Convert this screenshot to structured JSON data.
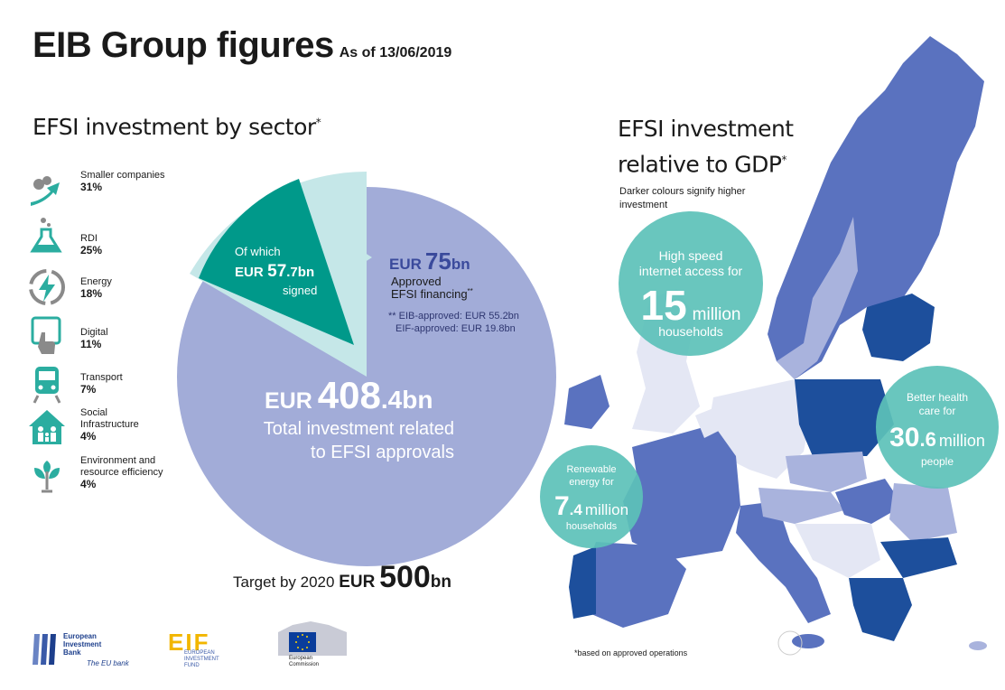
{
  "header": {
    "title": "EIB Group figures",
    "as_of": "As of 13/06/2019"
  },
  "sector_section": {
    "heading": "EFSI investment by sector",
    "asterisk": "*",
    "sectors": [
      {
        "label": "Smaller companies",
        "pct": "31%",
        "icon": "growth-arrow-icon"
      },
      {
        "label": "RDI",
        "pct": "25%",
        "icon": "flask-icon"
      },
      {
        "label": "Energy",
        "pct": "18%",
        "icon": "lightning-icon"
      },
      {
        "label": "Digital",
        "pct": "11%",
        "icon": "touchscreen-icon"
      },
      {
        "label": "Transport",
        "pct": "7%",
        "icon": "train-icon"
      },
      {
        "label": "Social\nInfrastructure",
        "pct": "4%",
        "icon": "house-family-icon"
      },
      {
        "label": "Environment and\nresource efficiency",
        "pct": "4%",
        "icon": "tree-icon"
      }
    ]
  },
  "pie": {
    "signed_of_which": "Of which",
    "signed_eur": "EUR",
    "signed_value_int": "57",
    "signed_value_dec": ".7bn",
    "signed_label": "signed",
    "approved_eur": "EUR",
    "approved_value": "75",
    "approved_unit": "bn",
    "approved_label1": "Approved",
    "approved_label2": "EFSI financing",
    "approved_asterisks": "**",
    "note1": "** EIB-approved: EUR 55.2bn",
    "note2": "EIF-approved: EUR 19.8bn",
    "total_eur": "EUR",
    "total_value_int": "408",
    "total_value_dec": ".4bn",
    "total_label1": "Total investment related",
    "total_label2": "to EFSI approvals",
    "colors": {
      "total": "#a2acd8",
      "approved": "#c5e7e8",
      "signed": "#00998a"
    }
  },
  "target": {
    "prefix": "Target by 2020",
    "eur": "EUR",
    "value": "500",
    "unit": "bn"
  },
  "gdp_section": {
    "title": "EFSI investment relative to GDP",
    "asterisk": "*",
    "subtitle": "Darker colours signify higher investment",
    "colors": {
      "dark": "#1d4f9c",
      "mid": "#5a72bf",
      "light": "#a9b3dd",
      "lightest": "#e4e7f4",
      "bubble": "#5cc1b8"
    }
  },
  "bubbles": {
    "internet": {
      "line1": "High speed",
      "line2": "internet access for",
      "value": "15",
      "unit": "million",
      "line3": "households"
    },
    "health": {
      "line1": "Better health",
      "line2": "care for",
      "value_int": "30",
      "value_dec": ".6",
      "unit": "million",
      "line3": "people"
    },
    "energy": {
      "line1": "Renewable",
      "line2": "energy for",
      "value_int": "7",
      "value_dec": ".4",
      "unit": "million",
      "line3": "households"
    }
  },
  "footnote": "*based on approved operations",
  "logos": {
    "eib_line1": "European",
    "eib_line2": "Investment",
    "eib_line3": "Bank",
    "eib_tagline": "The EU bank",
    "eif_mark": "EIF",
    "eif_line1": "EUROPEAN",
    "eif_line2": "INVESTMENT",
    "eif_line3": "FUND",
    "ec_line1": "European",
    "ec_line2": "Commission"
  }
}
